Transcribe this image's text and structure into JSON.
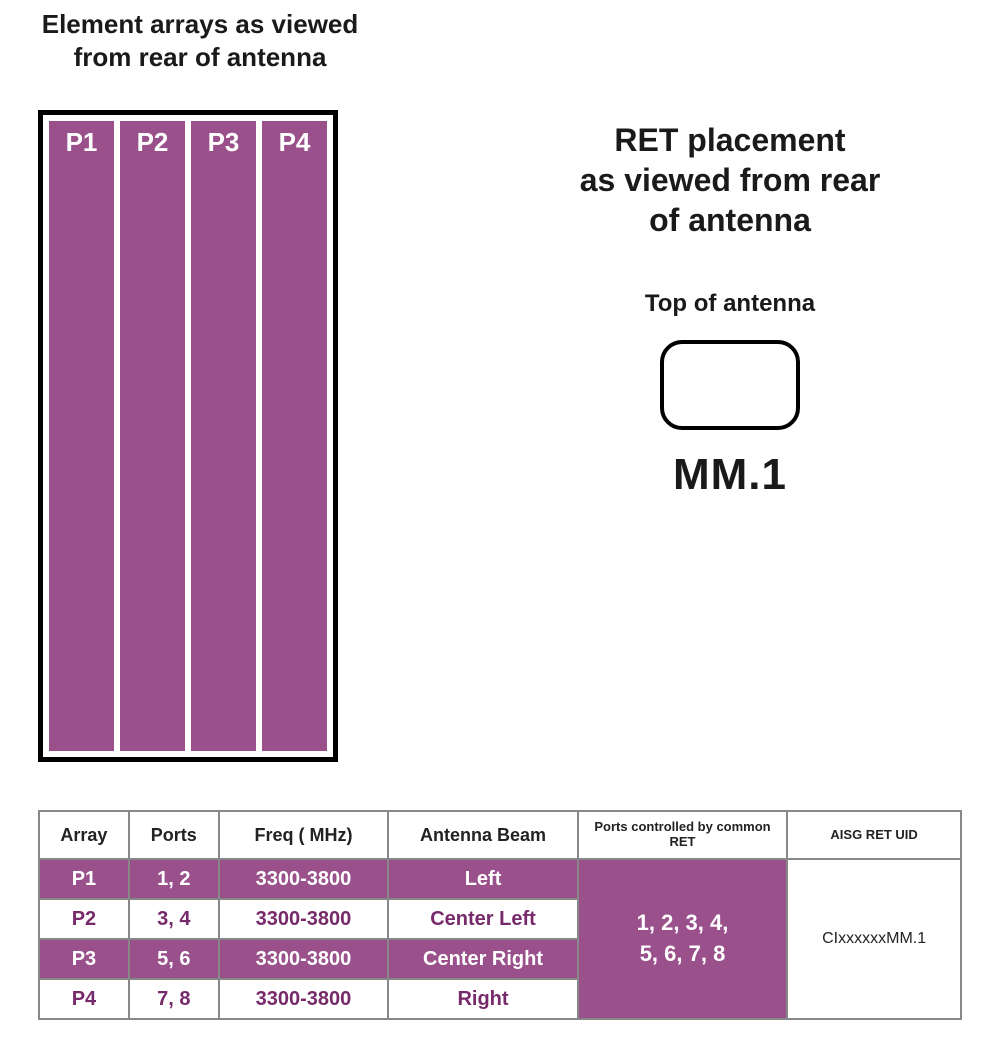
{
  "titles": {
    "left_line1": "Element arrays as viewed",
    "left_line2": "from rear of antenna",
    "right_line1": "RET placement",
    "right_line2": "as viewed from rear",
    "right_line3": "of antenna",
    "top_of_antenna": "Top of antenna",
    "ret_module_label": "MM.1"
  },
  "arrays": {
    "labels": [
      "P1",
      "P2",
      "P3",
      "P4"
    ],
    "color": "#99508b",
    "label_color": "#ffffff",
    "border_color": "#000000"
  },
  "ret_module": {
    "border_color": "#000000",
    "border_radius": 22,
    "width": 140,
    "height": 90
  },
  "table": {
    "headers": {
      "array": "Array",
      "ports": "Ports",
      "freq": "Freq ( MHz)",
      "beam": "Antenna Beam",
      "ret": "Ports controlled by common RET",
      "uid": "AISG RET UID"
    },
    "rows": [
      {
        "array": "P1",
        "ports": "1, 2",
        "freq": "3300-3800",
        "beam": "Left",
        "style": "purple"
      },
      {
        "array": "P2",
        "ports": "3, 4",
        "freq": "3300-3800",
        "beam": "Center Left",
        "style": "white"
      },
      {
        "array": "P3",
        "ports": "5, 6",
        "freq": "3300-3800",
        "beam": "Center Right",
        "style": "purple"
      },
      {
        "array": "P4",
        "ports": "7, 8",
        "freq": "3300-3800",
        "beam": "Right",
        "style": "white"
      }
    ],
    "merged_ret_line1": "1, 2, 3, 4,",
    "merged_ret_line2": "5, 6, 7, 8",
    "merged_uid": "CIxxxxxxMM.1",
    "colors": {
      "purple_bg": "#99508b",
      "purple_text": "#772a6a",
      "white_bg": "#ffffff",
      "header_text": "#222222",
      "border": "#888888"
    }
  }
}
